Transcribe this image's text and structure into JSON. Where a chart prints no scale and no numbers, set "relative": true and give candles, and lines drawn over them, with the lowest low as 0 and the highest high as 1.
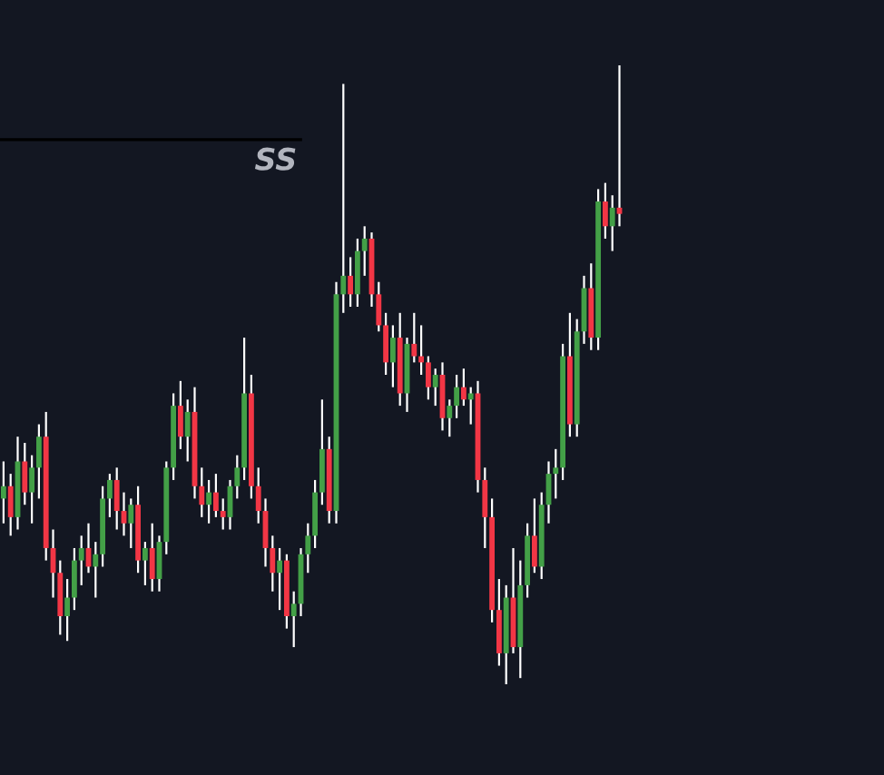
{
  "chart_data": {
    "type": "candlestick",
    "relative": true,
    "categories": [
      null,
      null,
      null,
      null,
      null,
      null,
      null,
      null,
      null,
      null,
      null,
      null,
      null,
      null,
      null,
      null,
      null,
      null,
      null,
      null,
      null,
      null,
      null,
      null,
      null,
      null,
      null,
      null,
      null,
      null,
      null,
      null,
      null,
      null,
      null,
      null,
      null,
      null,
      null,
      null,
      null,
      null,
      null,
      null,
      null,
      null,
      null,
      null,
      null,
      null,
      null,
      null,
      null,
      null,
      null,
      null,
      null,
      null,
      null,
      null,
      null,
      null,
      null,
      null,
      null,
      null,
      null,
      null,
      null,
      null,
      null,
      null,
      null,
      null,
      null,
      null,
      null,
      null,
      null,
      null,
      null,
      null,
      null,
      null,
      null,
      null,
      null,
      null
    ],
    "ohlc": [
      [
        0.3,
        0.36,
        0.26,
        0.32
      ],
      [
        0.32,
        0.34,
        0.24,
        0.27
      ],
      [
        0.27,
        0.4,
        0.25,
        0.36
      ],
      [
        0.36,
        0.39,
        0.29,
        0.31
      ],
      [
        0.31,
        0.37,
        0.26,
        0.35
      ],
      [
        0.35,
        0.42,
        0.3,
        0.4
      ],
      [
        0.4,
        0.44,
        0.2,
        0.22
      ],
      [
        0.22,
        0.25,
        0.14,
        0.18
      ],
      [
        0.18,
        0.2,
        0.08,
        0.11
      ],
      [
        0.11,
        0.17,
        0.07,
        0.14
      ],
      [
        0.14,
        0.22,
        0.12,
        0.2
      ],
      [
        0.2,
        0.24,
        0.16,
        0.22
      ],
      [
        0.22,
        0.26,
        0.18,
        0.19
      ],
      [
        0.19,
        0.23,
        0.14,
        0.21
      ],
      [
        0.21,
        0.32,
        0.19,
        0.3
      ],
      [
        0.3,
        0.34,
        0.27,
        0.33
      ],
      [
        0.33,
        0.35,
        0.25,
        0.28
      ],
      [
        0.28,
        0.31,
        0.24,
        0.26
      ],
      [
        0.26,
        0.3,
        0.22,
        0.29
      ],
      [
        0.29,
        0.32,
        0.18,
        0.2
      ],
      [
        0.2,
        0.23,
        0.16,
        0.22
      ],
      [
        0.22,
        0.26,
        0.15,
        0.17
      ],
      [
        0.17,
        0.24,
        0.15,
        0.23
      ],
      [
        0.23,
        0.36,
        0.21,
        0.35
      ],
      [
        0.35,
        0.47,
        0.33,
        0.45
      ],
      [
        0.45,
        0.49,
        0.38,
        0.4
      ],
      [
        0.4,
        0.46,
        0.36,
        0.44
      ],
      [
        0.44,
        0.48,
        0.3,
        0.32
      ],
      [
        0.32,
        0.35,
        0.27,
        0.29
      ],
      [
        0.29,
        0.33,
        0.26,
        0.31
      ],
      [
        0.31,
        0.34,
        0.27,
        0.28
      ],
      [
        0.28,
        0.3,
        0.25,
        0.27
      ],
      [
        0.27,
        0.33,
        0.25,
        0.32
      ],
      [
        0.32,
        0.37,
        0.3,
        0.35
      ],
      [
        0.35,
        0.56,
        0.33,
        0.47
      ],
      [
        0.47,
        0.5,
        0.3,
        0.32
      ],
      [
        0.32,
        0.35,
        0.26,
        0.28
      ],
      [
        0.28,
        0.3,
        0.19,
        0.22
      ],
      [
        0.22,
        0.24,
        0.15,
        0.18
      ],
      [
        0.18,
        0.22,
        0.12,
        0.2
      ],
      [
        0.2,
        0.21,
        0.09,
        0.11
      ],
      [
        0.11,
        0.15,
        0.06,
        0.13
      ],
      [
        0.13,
        0.22,
        0.11,
        0.21
      ],
      [
        0.21,
        0.26,
        0.18,
        0.24
      ],
      [
        0.24,
        0.33,
        0.22,
        0.31
      ],
      [
        0.31,
        0.46,
        0.29,
        0.38
      ],
      [
        0.38,
        0.4,
        0.26,
        0.28
      ],
      [
        0.28,
        0.65,
        0.26,
        0.63
      ],
      [
        0.63,
        0.97,
        0.6,
        0.66
      ],
      [
        0.66,
        0.69,
        0.61,
        0.63
      ],
      [
        0.63,
        0.72,
        0.61,
        0.7
      ],
      [
        0.7,
        0.74,
        0.66,
        0.72
      ],
      [
        0.72,
        0.73,
        0.61,
        0.63
      ],
      [
        0.63,
        0.65,
        0.57,
        0.58
      ],
      [
        0.58,
        0.6,
        0.5,
        0.52
      ],
      [
        0.52,
        0.58,
        0.48,
        0.56
      ],
      [
        0.56,
        0.6,
        0.45,
        0.47
      ],
      [
        0.47,
        0.56,
        0.44,
        0.55
      ],
      [
        0.55,
        0.6,
        0.52,
        0.53
      ],
      [
        0.53,
        0.58,
        0.5,
        0.52
      ],
      [
        0.52,
        0.53,
        0.46,
        0.48
      ],
      [
        0.48,
        0.51,
        0.45,
        0.5
      ],
      [
        0.5,
        0.52,
        0.41,
        0.43
      ],
      [
        0.43,
        0.46,
        0.4,
        0.45
      ],
      [
        0.45,
        0.5,
        0.43,
        0.48
      ],
      [
        0.48,
        0.51,
        0.45,
        0.46
      ],
      [
        0.46,
        0.48,
        0.42,
        0.47
      ],
      [
        0.47,
        0.49,
        0.31,
        0.33
      ],
      [
        0.33,
        0.35,
        0.22,
        0.27
      ],
      [
        0.27,
        0.3,
        0.1,
        0.12
      ],
      [
        0.12,
        0.17,
        0.03,
        0.05
      ],
      [
        0.05,
        0.16,
        0.0,
        0.14
      ],
      [
        0.14,
        0.22,
        0.05,
        0.06
      ],
      [
        0.06,
        0.2,
        0.01,
        0.16
      ],
      [
        0.16,
        0.26,
        0.14,
        0.24
      ],
      [
        0.24,
        0.3,
        0.18,
        0.19
      ],
      [
        0.19,
        0.31,
        0.17,
        0.29
      ],
      [
        0.29,
        0.36,
        0.26,
        0.34
      ],
      [
        0.34,
        0.38,
        0.3,
        0.35
      ],
      [
        0.35,
        0.55,
        0.33,
        0.53
      ],
      [
        0.53,
        0.6,
        0.4,
        0.42
      ],
      [
        0.42,
        0.59,
        0.4,
        0.57
      ],
      [
        0.57,
        0.66,
        0.55,
        0.64
      ],
      [
        0.64,
        0.68,
        0.54,
        0.56
      ],
      [
        0.56,
        0.8,
        0.54,
        0.78
      ],
      [
        0.78,
        0.81,
        0.72,
        0.74
      ],
      [
        0.74,
        0.79,
        0.7,
        0.77
      ],
      [
        0.77,
        1.0,
        0.74,
        0.76
      ]
    ],
    "colors": [
      "#43a047",
      "#f23645",
      "#43a047",
      "#f23645",
      "#43a047",
      "#43a047",
      "#f23645",
      "#f23645",
      "#f23645",
      "#43a047",
      "#43a047",
      "#43a047",
      "#f23645",
      "#43a047",
      "#43a047",
      "#43a047",
      "#f23645",
      "#f23645",
      "#43a047",
      "#f23645",
      "#43a047",
      "#f23645",
      "#43a047",
      "#43a047",
      "#43a047",
      "#f23645",
      "#43a047",
      "#f23645",
      "#f23645",
      "#43a047",
      "#f23645",
      "#f23645",
      "#43a047",
      "#43a047",
      "#43a047",
      "#f23645",
      "#f23645",
      "#f23645",
      "#f23645",
      "#43a047",
      "#f23645",
      "#43a047",
      "#43a047",
      "#43a047",
      "#43a047",
      "#43a047",
      "#f23645",
      "#43a047",
      "#43a047",
      "#f23645",
      "#43a047",
      "#43a047",
      "#f23645",
      "#f23645",
      "#f23645",
      "#43a047",
      "#f23645",
      "#43a047",
      "#f23645",
      "#f23645",
      "#f23645",
      "#43a047",
      "#f23645",
      "#43a047",
      "#43a047",
      "#f23645",
      "#43a047",
      "#f23645",
      "#f23645",
      "#f23645",
      "#f23645",
      "#43a047",
      "#f23645",
      "#43a047",
      "#43a047",
      "#f23645",
      "#43a047",
      "#43a047",
      "#43a047",
      "#43a047",
      "#f23645",
      "#43a047",
      "#43a047",
      "#f23645",
      "#43a047",
      "#f23645",
      "#43a047",
      "#f23645"
    ],
    "ref_lines": [
      {
        "axis": "y",
        "value": 0.88,
        "label": "SS",
        "color": "#000000"
      }
    ]
  }
}
